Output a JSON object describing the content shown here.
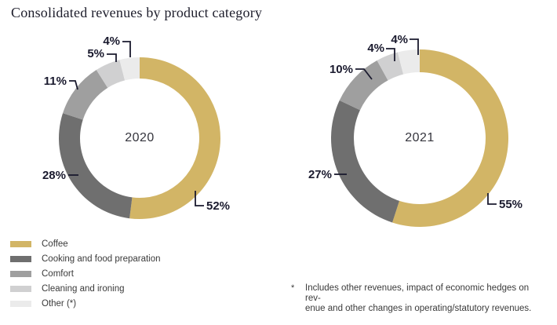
{
  "page": {
    "title": "Consolidated revenues by product category"
  },
  "colors": {
    "coffee": "#D2B566",
    "cooking": "#6F6F6F",
    "comfort": "#9F9F9F",
    "cleaning": "#D0D0D1",
    "other": "#EBEBEB",
    "callout_line": "#1A1A2E"
  },
  "chart_data": [
    {
      "type": "pie",
      "subtype": "donut",
      "title": "2020",
      "categories": [
        "Coffee",
        "Cooking and food preparation",
        "Comfort",
        "Cleaning and ironing",
        "Other (*)"
      ],
      "values": [
        52,
        28,
        11,
        5,
        4
      ],
      "labels": [
        "52%",
        "28%",
        "11%",
        "5%",
        "4%"
      ],
      "unit": "%",
      "start_angle": "12-o-clock",
      "direction": "clockwise",
      "slice_colors": [
        "#D2B566",
        "#6F6F6F",
        "#9F9F9F",
        "#D0D0D1",
        "#EBEBEB"
      ]
    },
    {
      "type": "pie",
      "subtype": "donut",
      "title": "2021",
      "categories": [
        "Coffee",
        "Cooking and food preparation",
        "Comfort",
        "Cleaning and ironing",
        "Other (*)"
      ],
      "values": [
        55,
        27,
        10,
        4,
        4
      ],
      "labels": [
        "55%",
        "27%",
        "10%",
        "4%",
        "4%"
      ],
      "unit": "%",
      "start_angle": "12-o-clock",
      "direction": "clockwise",
      "slice_colors": [
        "#D2B566",
        "#6F6F6F",
        "#9F9F9F",
        "#D0D0D1",
        "#EBEBEB"
      ]
    }
  ],
  "legend": {
    "items": [
      {
        "label": "Coffee",
        "color": "#D2B566"
      },
      {
        "label": "Cooking and food preparation",
        "color": "#6F6F6F"
      },
      {
        "label": "Comfort",
        "color": "#9F9F9F"
      },
      {
        "label": "Cleaning and ironing",
        "color": "#D0D0D1"
      },
      {
        "label": "Other (*)",
        "color": "#EBEBEB"
      }
    ]
  },
  "footnote": {
    "marker": "*",
    "lines": [
      "Includes other revenues, impact of economic hedges on rev-",
      "enue and other changes in operating/statutory revenues."
    ]
  }
}
